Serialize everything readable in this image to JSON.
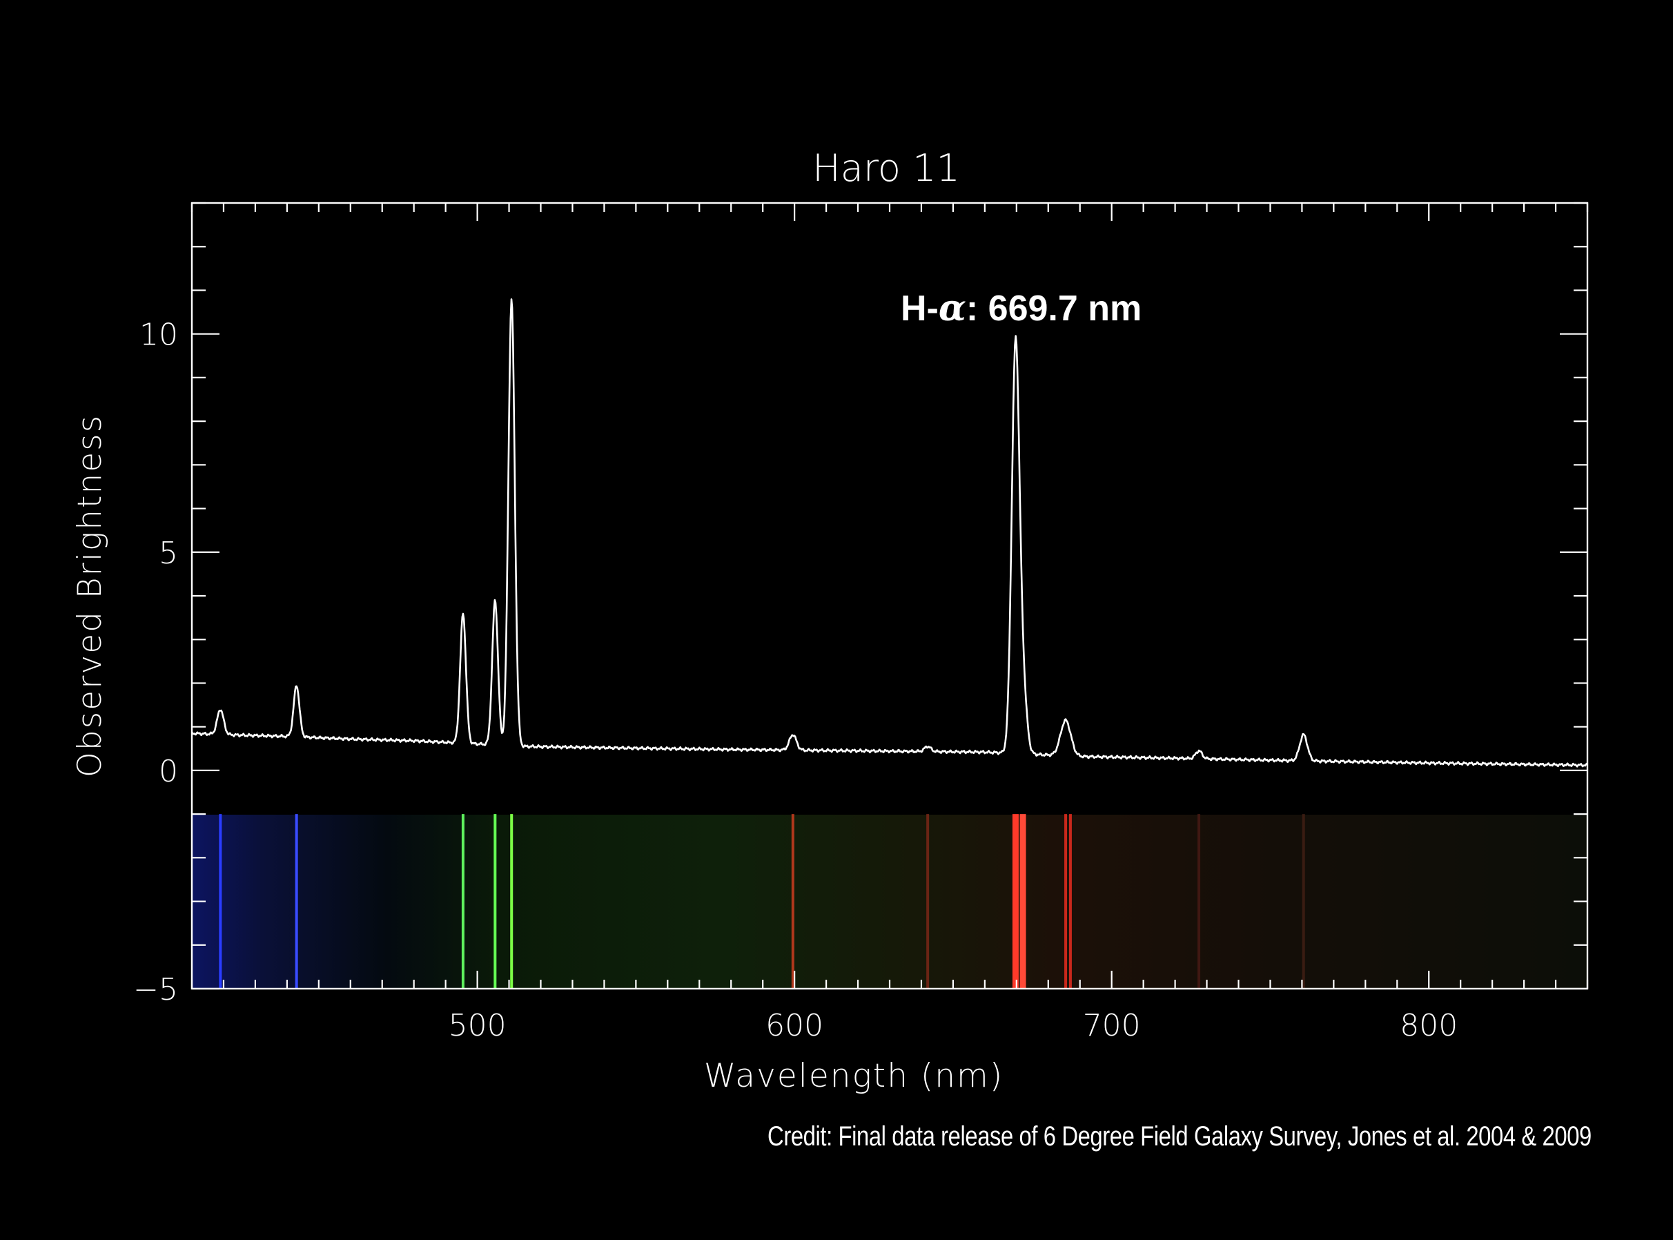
{
  "credit": "Credit: Final data release of 6 Degree Field Galaxy Survey,  Jones et al. 2004 & 2009",
  "colors": {
    "background": "#000000",
    "axes": "#ffffff",
    "line": "#ffffff"
  },
  "chart_data": {
    "type": "line",
    "title": "Haro 11",
    "xlabel": "Wavelength (nm)",
    "ylabel": "Observed Brightness",
    "xlim": [
      410,
      850
    ],
    "ylim": [
      -5,
      13
    ],
    "x_ticks": [
      500,
      600,
      700,
      800
    ],
    "y_ticks": [
      -5,
      0,
      5,
      10
    ],
    "annotation": {
      "text_prefix": "H-",
      "text_greek": "α",
      "text_suffix": ": 669.7 nm",
      "x": 669.7,
      "y": 9.7
    },
    "continuum": [
      [
        410,
        0.85
      ],
      [
        420,
        0.82
      ],
      [
        440,
        0.78
      ],
      [
        460,
        0.72
      ],
      [
        480,
        0.68
      ],
      [
        494,
        0.63
      ],
      [
        515,
        0.55
      ],
      [
        540,
        0.52
      ],
      [
        580,
        0.48
      ],
      [
        620,
        0.45
      ],
      [
        660,
        0.42
      ],
      [
        690,
        0.32
      ],
      [
        720,
        0.28
      ],
      [
        760,
        0.22
      ],
      [
        800,
        0.17
      ],
      [
        850,
        0.12
      ]
    ],
    "emission_lines": [
      {
        "x": 419,
        "peak": 1.4,
        "width": 1.0
      },
      {
        "x": 443,
        "peak": 1.95,
        "width": 0.9
      },
      {
        "x": 495.5,
        "peak": 3.6,
        "width": 0.9
      },
      {
        "x": 505.6,
        "peak": 3.9,
        "width": 0.9
      },
      {
        "x": 510.8,
        "peak": 10.8,
        "width": 1.0
      },
      {
        "x": 599.5,
        "peak": 0.82,
        "width": 1.1
      },
      {
        "x": 642,
        "peak": 0.55,
        "width": 1.0
      },
      {
        "x": 669.7,
        "peak": 9.7,
        "width": 1.2
      },
      {
        "x": 672,
        "peak": 1.8,
        "width": 1.2
      },
      {
        "x": 685.5,
        "peak": 1.15,
        "width": 1.6
      },
      {
        "x": 727.5,
        "peak": 0.45,
        "width": 1.0
      },
      {
        "x": 760.5,
        "peak": 0.82,
        "width": 1.2
      }
    ],
    "spectrum_strip": {
      "y_range": [
        -5,
        -1
      ],
      "lines": [
        {
          "x": 419,
          "color": "#2a3cff"
        },
        {
          "x": 443,
          "color": "#3a4cff"
        },
        {
          "x": 495.5,
          "color": "#5ef05e"
        },
        {
          "x": 505.6,
          "color": "#66ff55"
        },
        {
          "x": 510.8,
          "color": "#7dff46"
        },
        {
          "x": 599.5,
          "color": "#b0371c"
        },
        {
          "x": 642,
          "color": "#6a2414"
        },
        {
          "x": 669.7,
          "color": "#ff3a2a"
        },
        {
          "x": 672,
          "color": "#ff4a38"
        },
        {
          "x": 685.5,
          "color": "#c8281c"
        },
        {
          "x": 687,
          "color": "#c8281c"
        },
        {
          "x": 727.5,
          "color": "#401812"
        },
        {
          "x": 760.5,
          "color": "#3a1c12"
        }
      ]
    }
  }
}
